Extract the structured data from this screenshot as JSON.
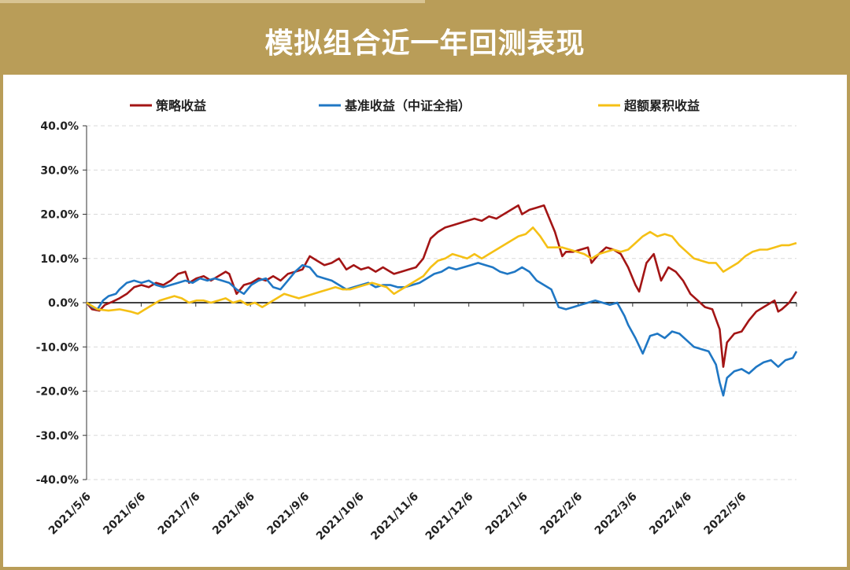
{
  "title": "模拟组合近一年回测表现",
  "chart_data": {
    "type": "line",
    "title": "",
    "xlabel": "",
    "ylabel": "",
    "ylim": [
      -40,
      40
    ],
    "y_ticks": [
      "40.0%",
      "30.0%",
      "20.0%",
      "10.0%",
      "0.0%",
      "-10.0%",
      "-20.0%",
      "-30.0%",
      "-40.0%"
    ],
    "x_ticks": [
      "2021/5/6",
      "2021/6/6",
      "2021/7/6",
      "2021/8/6",
      "2021/9/6",
      "2021/10/6",
      "2021/11/6",
      "2021/12/6",
      "2022/1/6",
      "2022/2/6",
      "2022/3/6",
      "2022/4/6",
      "2022/5/6"
    ],
    "x_range_days": [
      0,
      388
    ],
    "grid": "horizontal dashed",
    "legend_position": "top",
    "series": [
      {
        "name": "策略收益",
        "color": "#a31515",
        "points": [
          [
            0,
            0
          ],
          [
            3,
            -1.5
          ],
          [
            7,
            -1.8
          ],
          [
            10,
            -0.5
          ],
          [
            14,
            0.2
          ],
          [
            18,
            1
          ],
          [
            22,
            2
          ],
          [
            26,
            3.5
          ],
          [
            30,
            4
          ],
          [
            34,
            3.5
          ],
          [
            38,
            4.5
          ],
          [
            42,
            4
          ],
          [
            46,
            5
          ],
          [
            50,
            6.5
          ],
          [
            54,
            7
          ],
          [
            56,
            4.5
          ],
          [
            60,
            5.5
          ],
          [
            64,
            6
          ],
          [
            68,
            5
          ],
          [
            72,
            6
          ],
          [
            76,
            7
          ],
          [
            78,
            6.5
          ],
          [
            82,
            2
          ],
          [
            86,
            4
          ],
          [
            90,
            4.5
          ],
          [
            94,
            5.5
          ],
          [
            98,
            5
          ],
          [
            102,
            6
          ],
          [
            106,
            5
          ],
          [
            110,
            6.5
          ],
          [
            114,
            7
          ],
          [
            118,
            7.5
          ],
          [
            122,
            10.5
          ],
          [
            126,
            9.5
          ],
          [
            130,
            8.5
          ],
          [
            134,
            9
          ],
          [
            138,
            10
          ],
          [
            142,
            7.5
          ],
          [
            146,
            8.5
          ],
          [
            150,
            7.5
          ],
          [
            154,
            8
          ],
          [
            158,
            7
          ],
          [
            162,
            8
          ],
          [
            166,
            7
          ],
          [
            168,
            6.5
          ],
          [
            172,
            7
          ],
          [
            176,
            7.5
          ],
          [
            180,
            8
          ],
          [
            184,
            10
          ],
          [
            188,
            14.5
          ],
          [
            192,
            16
          ],
          [
            196,
            17
          ],
          [
            200,
            17.5
          ],
          [
            204,
            18
          ],
          [
            208,
            18.5
          ],
          [
            212,
            19
          ],
          [
            216,
            18.5
          ],
          [
            220,
            19.5
          ],
          [
            224,
            19
          ],
          [
            228,
            20
          ],
          [
            232,
            21
          ],
          [
            236,
            22
          ],
          [
            238,
            20
          ],
          [
            242,
            21
          ],
          [
            246,
            21.5
          ],
          [
            250,
            22
          ],
          [
            252,
            20
          ],
          [
            256,
            16
          ],
          [
            260,
            10.5
          ],
          [
            262,
            11.5
          ],
          [
            266,
            11.5
          ],
          [
            270,
            12
          ],
          [
            274,
            12.5
          ],
          [
            276,
            9
          ],
          [
            280,
            11
          ],
          [
            284,
            12.5
          ],
          [
            288,
            12
          ],
          [
            292,
            11
          ],
          [
            296,
            8
          ],
          [
            300,
            4
          ],
          [
            302,
            2.5
          ],
          [
            306,
            9
          ],
          [
            310,
            11
          ],
          [
            314,
            5
          ],
          [
            318,
            8
          ],
          [
            322,
            7
          ],
          [
            326,
            5
          ],
          [
            330,
            2
          ],
          [
            334,
            0.5
          ],
          [
            338,
            -1
          ],
          [
            342,
            -1.5
          ],
          [
            346,
            -6
          ],
          [
            348,
            -14.5
          ],
          [
            350,
            -9
          ],
          [
            354,
            -7
          ],
          [
            358,
            -6.5
          ],
          [
            362,
            -4
          ],
          [
            366,
            -2
          ],
          [
            370,
            -1
          ],
          [
            374,
            0
          ],
          [
            376,
            0.5
          ],
          [
            378,
            -2
          ],
          [
            380,
            -1.5
          ],
          [
            384,
            0
          ],
          [
            388,
            2.5
          ]
        ]
      },
      {
        "name": "基准收益（中证全指）",
        "color": "#1f77c4",
        "points": [
          [
            0,
            0
          ],
          [
            3,
            -1
          ],
          [
            6,
            -1.5
          ],
          [
            9,
            0.5
          ],
          [
            12,
            1.5
          ],
          [
            16,
            2
          ],
          [
            18,
            3
          ],
          [
            22,
            4.5
          ],
          [
            26,
            5
          ],
          [
            30,
            4.5
          ],
          [
            34,
            5
          ],
          [
            38,
            4
          ],
          [
            42,
            3.5
          ],
          [
            46,
            4
          ],
          [
            50,
            4.5
          ],
          [
            54,
            5
          ],
          [
            58,
            4.5
          ],
          [
            62,
            5.5
          ],
          [
            66,
            5
          ],
          [
            70,
            5.5
          ],
          [
            74,
            5
          ],
          [
            78,
            4.5
          ],
          [
            82,
            3
          ],
          [
            86,
            2
          ],
          [
            90,
            4
          ],
          [
            94,
            5
          ],
          [
            98,
            5.5
          ],
          [
            102,
            3.5
          ],
          [
            106,
            3
          ],
          [
            110,
            5
          ],
          [
            114,
            7
          ],
          [
            118,
            8.5
          ],
          [
            122,
            8
          ],
          [
            126,
            6
          ],
          [
            130,
            5.5
          ],
          [
            134,
            5
          ],
          [
            138,
            4
          ],
          [
            142,
            3
          ],
          [
            146,
            3.5
          ],
          [
            150,
            4
          ],
          [
            154,
            4.5
          ],
          [
            158,
            3.5
          ],
          [
            162,
            4
          ],
          [
            166,
            4
          ],
          [
            170,
            3.5
          ],
          [
            174,
            3.5
          ],
          [
            178,
            4
          ],
          [
            182,
            4.5
          ],
          [
            186,
            5.5
          ],
          [
            190,
            6.5
          ],
          [
            194,
            7
          ],
          [
            198,
            8
          ],
          [
            202,
            7.5
          ],
          [
            206,
            8
          ],
          [
            210,
            8.5
          ],
          [
            214,
            9
          ],
          [
            218,
            8.5
          ],
          [
            222,
            8
          ],
          [
            226,
            7
          ],
          [
            230,
            6.5
          ],
          [
            234,
            7
          ],
          [
            238,
            8
          ],
          [
            242,
            7
          ],
          [
            246,
            5
          ],
          [
            250,
            4
          ],
          [
            254,
            3
          ],
          [
            258,
            -1
          ],
          [
            262,
            -1.5
          ],
          [
            266,
            -1
          ],
          [
            270,
            -0.5
          ],
          [
            274,
            0
          ],
          [
            278,
            0.5
          ],
          [
            282,
            0
          ],
          [
            286,
            -0.5
          ],
          [
            290,
            0
          ],
          [
            294,
            -3
          ],
          [
            296,
            -5
          ],
          [
            300,
            -8
          ],
          [
            304,
            -11.5
          ],
          [
            308,
            -7.5
          ],
          [
            312,
            -7
          ],
          [
            316,
            -8
          ],
          [
            320,
            -6.5
          ],
          [
            324,
            -7
          ],
          [
            328,
            -8.5
          ],
          [
            332,
            -10
          ],
          [
            336,
            -10.5
          ],
          [
            340,
            -11
          ],
          [
            344,
            -14
          ],
          [
            346,
            -18
          ],
          [
            348,
            -21
          ],
          [
            350,
            -17
          ],
          [
            354,
            -15.5
          ],
          [
            358,
            -15
          ],
          [
            362,
            -16
          ],
          [
            366,
            -14.5
          ],
          [
            370,
            -13.5
          ],
          [
            374,
            -13
          ],
          [
            378,
            -14.5
          ],
          [
            382,
            -13
          ],
          [
            386,
            -12.5
          ],
          [
            388,
            -11
          ]
        ]
      },
      {
        "name": "超额累积收益",
        "color": "#f5c015",
        "points": [
          [
            0,
            0
          ],
          [
            6,
            -1.5
          ],
          [
            12,
            -1.8
          ],
          [
            18,
            -1.5
          ],
          [
            24,
            -2
          ],
          [
            28,
            -2.5
          ],
          [
            32,
            -1.5
          ],
          [
            36,
            -0.5
          ],
          [
            40,
            0.5
          ],
          [
            44,
            1
          ],
          [
            48,
            1.5
          ],
          [
            52,
            1
          ],
          [
            56,
            0
          ],
          [
            60,
            0.5
          ],
          [
            64,
            0.5
          ],
          [
            68,
            0
          ],
          [
            72,
            0.5
          ],
          [
            76,
            1
          ],
          [
            80,
            0
          ],
          [
            84,
            0.5
          ],
          [
            88,
            -0.5
          ],
          [
            92,
            0
          ],
          [
            96,
            -1
          ],
          [
            100,
            0
          ],
          [
            104,
            1
          ],
          [
            108,
            2
          ],
          [
            112,
            1.5
          ],
          [
            116,
            1
          ],
          [
            120,
            1.5
          ],
          [
            124,
            2
          ],
          [
            128,
            2.5
          ],
          [
            132,
            3
          ],
          [
            136,
            3.5
          ],
          [
            140,
            3
          ],
          [
            144,
            3
          ],
          [
            148,
            3.5
          ],
          [
            152,
            4
          ],
          [
            156,
            4.5
          ],
          [
            160,
            4
          ],
          [
            164,
            3.5
          ],
          [
            168,
            2
          ],
          [
            172,
            3
          ],
          [
            176,
            4
          ],
          [
            180,
            5
          ],
          [
            184,
            6
          ],
          [
            188,
            8
          ],
          [
            192,
            9.5
          ],
          [
            196,
            10
          ],
          [
            200,
            11
          ],
          [
            204,
            10.5
          ],
          [
            208,
            10
          ],
          [
            212,
            11
          ],
          [
            216,
            10
          ],
          [
            220,
            11
          ],
          [
            224,
            12
          ],
          [
            228,
            13
          ],
          [
            232,
            14
          ],
          [
            236,
            15
          ],
          [
            240,
            15.5
          ],
          [
            244,
            17
          ],
          [
            248,
            15
          ],
          [
            252,
            12.5
          ],
          [
            256,
            12.5
          ],
          [
            260,
            12.5
          ],
          [
            264,
            12
          ],
          [
            268,
            11.5
          ],
          [
            272,
            11
          ],
          [
            276,
            10
          ],
          [
            280,
            11
          ],
          [
            284,
            11.5
          ],
          [
            288,
            12
          ],
          [
            292,
            11.5
          ],
          [
            296,
            12
          ],
          [
            300,
            13.5
          ],
          [
            304,
            15
          ],
          [
            308,
            16
          ],
          [
            312,
            15
          ],
          [
            316,
            15.5
          ],
          [
            320,
            15
          ],
          [
            324,
            13
          ],
          [
            328,
            11.5
          ],
          [
            332,
            10
          ],
          [
            336,
            9.5
          ],
          [
            340,
            9
          ],
          [
            344,
            9
          ],
          [
            348,
            7
          ],
          [
            352,
            8
          ],
          [
            356,
            9
          ],
          [
            360,
            10.5
          ],
          [
            364,
            11.5
          ],
          [
            368,
            12
          ],
          [
            372,
            12
          ],
          [
            376,
            12.5
          ],
          [
            380,
            13
          ],
          [
            384,
            13
          ],
          [
            388,
            13.5
          ]
        ]
      }
    ]
  }
}
